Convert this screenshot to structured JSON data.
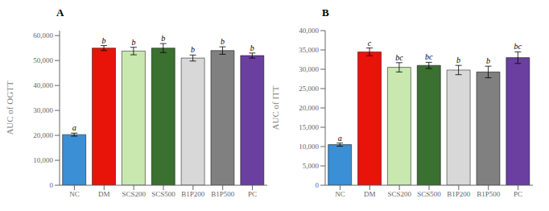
{
  "chart_data": [
    {
      "type": "bar",
      "title": "A",
      "ylabel": "AUC of OGTT",
      "categories": [
        "NC",
        "DM",
        "SCS200",
        "SCS500",
        "B1P200",
        "B1P500",
        "PC"
      ],
      "values": [
        20300,
        55000,
        53800,
        55000,
        51000,
        54000,
        52000
      ],
      "errors": [
        600,
        1000,
        1500,
        1800,
        1200,
        1500,
        1000
      ],
      "colors": [
        "#3b8fd4",
        "#e8140a",
        "#c8e8b0",
        "#3a7030",
        "#d8d8d8",
        "#808080",
        "#6a3fa0"
      ],
      "letters": [
        "a",
        "b",
        "b",
        "b",
        "b",
        "b",
        "b"
      ],
      "ylim": [
        0,
        62000
      ],
      "yticks": [
        0,
        {
          "value": 10000,
          "label": "10,000"
        },
        {
          "value": 20000,
          "label": "20,000"
        },
        {
          "value": 30000,
          "label": "30,000"
        },
        {
          "value": 40000,
          "label": "40,000"
        },
        {
          "value": 50000,
          "label": "50,000"
        },
        {
          "value": 60000,
          "label": "60,000"
        }
      ]
    },
    {
      "type": "bar",
      "title": "B",
      "ylabel": "AUC of ITT",
      "categories": [
        "NC",
        "DM",
        "SCS200",
        "SCS500",
        "B1P200",
        "B1P500",
        "PC"
      ],
      "values": [
        10500,
        34500,
        30500,
        31000,
        29800,
        29300,
        33000
      ],
      "errors": [
        400,
        1000,
        1200,
        800,
        1200,
        1500,
        1500
      ],
      "colors": [
        "#3b8fd4",
        "#e8140a",
        "#c8e8b0",
        "#3a7030",
        "#d8d8d8",
        "#808080",
        "#6a3fa0"
      ],
      "letters": [
        "a",
        "c",
        "bc",
        "bc",
        "b",
        "b",
        "bc"
      ],
      "ylim": [
        0,
        40000
      ],
      "yticks": [
        0,
        {
          "value": 5000,
          "label": "5,000"
        },
        {
          "value": 10000,
          "label": "10,000"
        },
        {
          "value": 15000,
          "label": "15,000"
        },
        {
          "value": 20000,
          "label": "20,000"
        },
        {
          "value": 25000,
          "label": "25,000"
        },
        {
          "value": 30000,
          "label": "30,000"
        },
        {
          "value": 35000,
          "label": "35,000"
        },
        {
          "value": 40000,
          "label": "40,000"
        }
      ]
    }
  ]
}
